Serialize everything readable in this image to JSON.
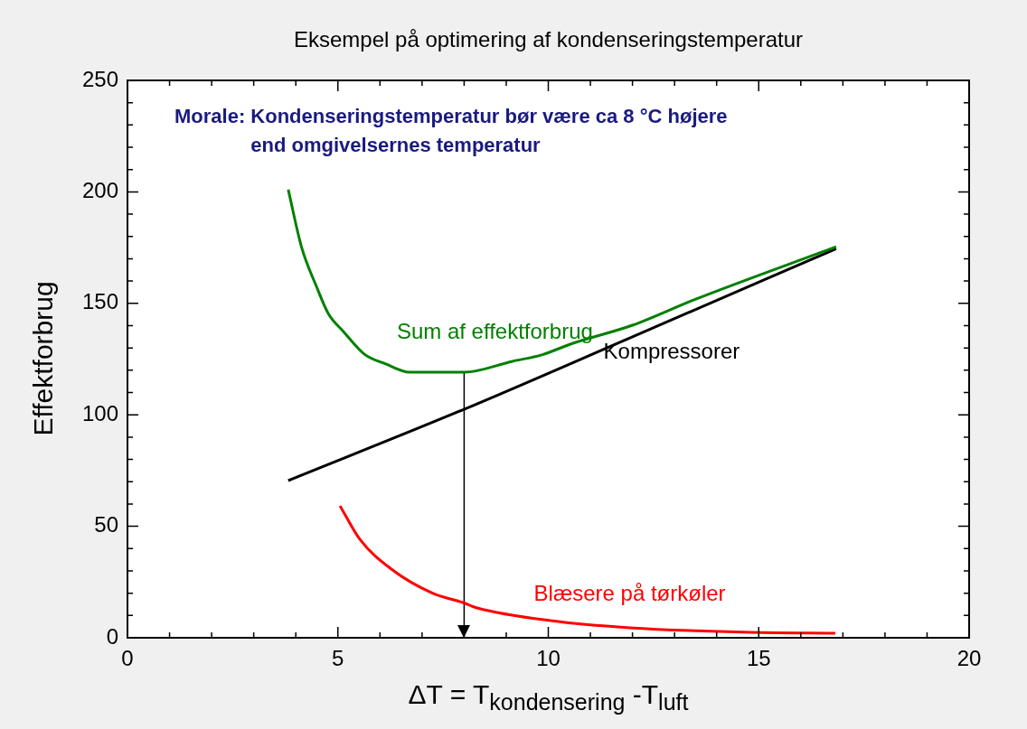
{
  "chart_data": {
    "type": "line",
    "title": "Eksempel på optimering af kondenseringstemperatur",
    "xlabel": "ΔT   = T$_{kondensering}$ -T$_{luft}$",
    "ylabel": "Effektforbrug",
    "annotations": [
      "Morale: Kondenseringstemperatur bør være ca 8 °C højere\nend omgivelsernes temperatur"
    ],
    "xlim": [
      0,
      20
    ],
    "ylim": [
      0,
      250
    ],
    "xticks": [
      0,
      {
        "value": 1,
        "label": null
      },
      {
        "value": 2,
        "label": null
      },
      {
        "value": 3,
        "label": null
      },
      {
        "value": 4,
        "label": null
      },
      5,
      {
        "value": 6,
        "label": null
      },
      {
        "value": 7,
        "label": null
      },
      {
        "value": 8,
        "label": null
      },
      {
        "value": 9,
        "label": null
      },
      10,
      {
        "value": 11,
        "label": null
      },
      {
        "value": 12,
        "label": null
      },
      {
        "value": 13,
        "label": null
      },
      {
        "value": 14,
        "label": null
      },
      15,
      {
        "value": 16,
        "label": null
      },
      {
        "value": 17,
        "label": null
      },
      {
        "value": 18,
        "label": null
      },
      {
        "value": 19,
        "label": null
      },
      20
    ],
    "yticks": [
      0,
      {
        "value": 10,
        "label": null
      },
      {
        "value": 20,
        "label": null
      },
      {
        "value": 30,
        "label": null
      },
      {
        "value": 40,
        "label": null
      },
      50,
      {
        "value": 60,
        "label": null
      },
      {
        "value": 70,
        "label": null
      },
      {
        "value": 80,
        "label": null
      },
      {
        "value": 90,
        "label": null
      },
      100,
      {
        "value": 110,
        "label": null
      },
      {
        "value": 120,
        "label": null
      },
      {
        "value": 130,
        "label": null
      },
      {
        "value": 140,
        "label": null
      },
      150,
      {
        "value": 160,
        "label": null
      },
      {
        "value": 170,
        "label": null
      },
      {
        "value": 180,
        "label": null
      },
      {
        "value": 190,
        "label": null
      },
      200,
      {
        "value": 210,
        "label": null
      },
      {
        "value": 220,
        "label": null
      },
      {
        "value": 230,
        "label": null
      },
      {
        "value": 240,
        "label": null
      },
      250
    ],
    "grid": false,
    "legend": false,
    "marker": "none",
    "line_style": "solid",
    "series": [
      {
        "name": "Sum af effektforbrug",
        "color": "#008000",
        "x": [
          3.82,
          4.14,
          4.49,
          4.77,
          5.13,
          5.63,
          6.14,
          6.7,
          8.0,
          9.15,
          9.86,
          10.57,
          12.0,
          13.45,
          16.84
        ],
        "values": [
          201,
          175,
          157.6,
          145.5,
          137.4,
          127.2,
          122.8,
          119.1,
          119.1,
          124,
          127,
          132,
          140.2,
          151.5,
          175.4
        ]
      },
      {
        "name": "Kompressorer",
        "color": "#000000",
        "x": [
          3.82,
          8.0,
          12.0,
          16.84
        ],
        "values": [
          70.5,
          102.5,
          135,
          174.5
        ]
      },
      {
        "name": "Blæsere på tørkøler",
        "color": "#ff0000",
        "x": [
          5.05,
          5.52,
          6.27,
          7.26,
          7.97,
          8.31,
          10.05,
          11.94,
          14.82,
          16.82
        ],
        "values": [
          59.2,
          44.2,
          30.8,
          19.9,
          15.8,
          13.4,
          7.7,
          4.5,
          2.4,
          2.0
        ]
      },
      {
        "color": "#000000",
        "x": [
          8,
          8
        ],
        "values": [
          119,
          0
        ]
      }
    ]
  }
}
